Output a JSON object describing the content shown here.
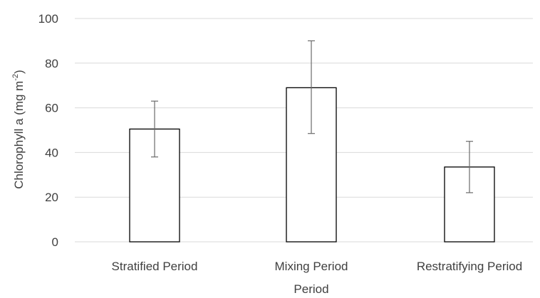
{
  "chart_data": {
    "type": "bar",
    "title": "",
    "xlabel": "Period",
    "ylabel_main": "Chlorophyll a (mg m",
    "ylabel_sup": "-2",
    "ylabel_end": ")",
    "categories": [
      "Stratified Period",
      "Mixing Period",
      "Restratifying Period"
    ],
    "series": [
      {
        "values": [
          50.5,
          69,
          33.5
        ],
        "error_low": [
          38,
          48.5,
          22
        ],
        "error_high": [
          63,
          90,
          45
        ]
      }
    ],
    "ylim": [
      0,
      100
    ],
    "yticks": [
      "0",
      "20",
      "40",
      "60",
      "80",
      "100"
    ],
    "grid": true,
    "legend": "none",
    "colors": {
      "bar_fill": "#ffffff",
      "bar_stroke": "#000000",
      "gridline": "#d9d9d9",
      "error_bar": "#6b6b6b",
      "text": "#404040"
    }
  }
}
